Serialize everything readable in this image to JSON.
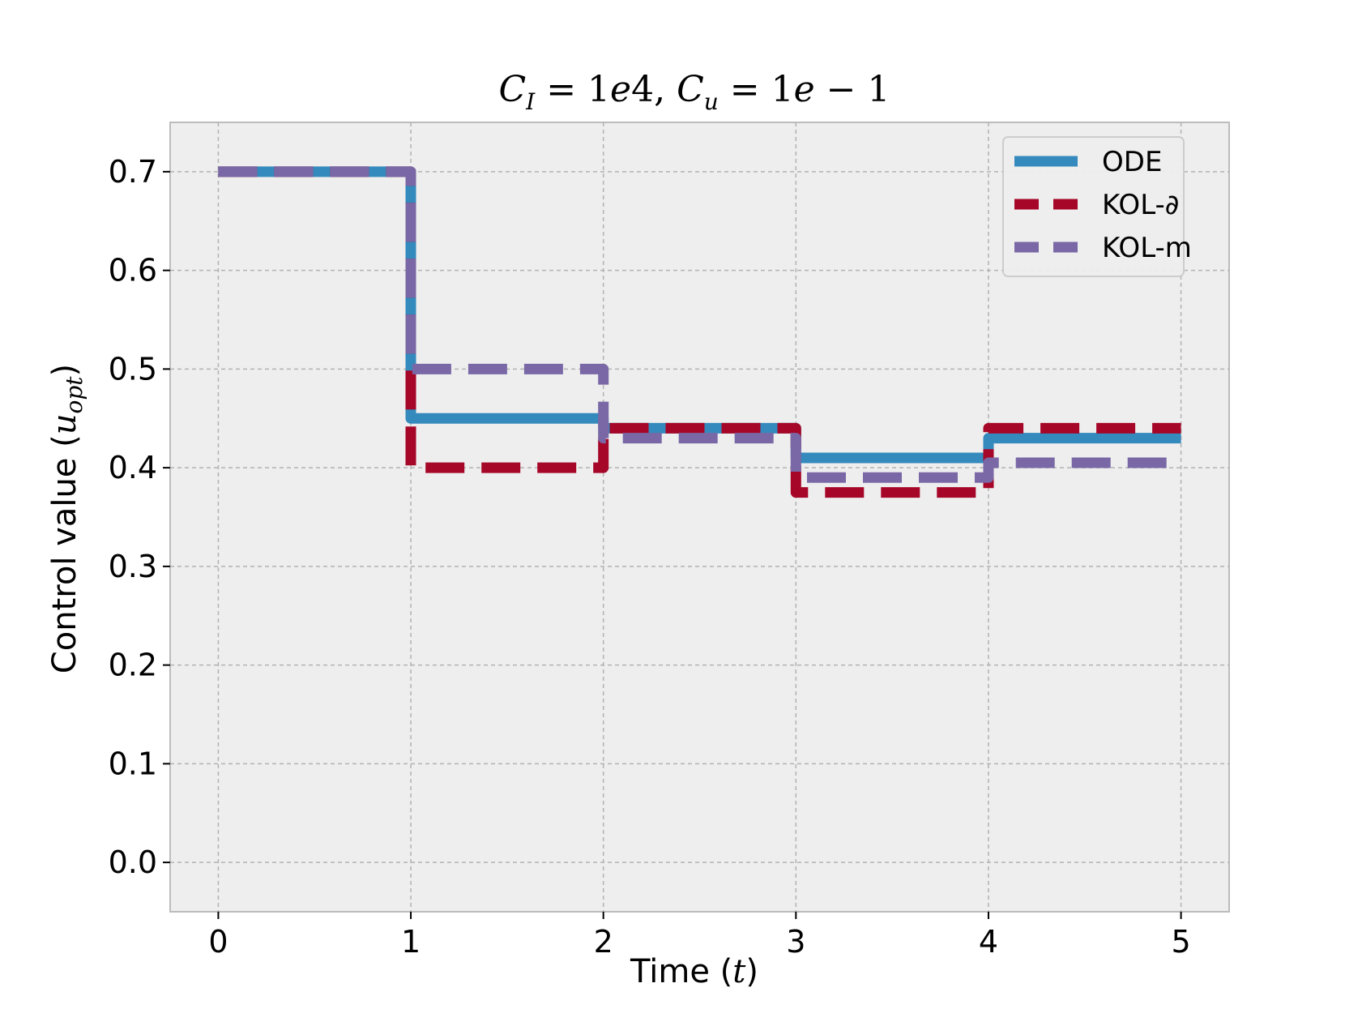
{
  "chart_data": {
    "type": "line",
    "title": "C_I = 1e4,  C_u = 1e − 1",
    "xlabel": "Time (t)",
    "ylabel": "Control value (u_opt)",
    "xlim": [
      -0.25,
      5.25
    ],
    "ylim": [
      -0.05,
      0.75
    ],
    "xticks": [
      0,
      1,
      2,
      3,
      4,
      5
    ],
    "yticks": [
      0.0,
      0.1,
      0.2,
      0.3,
      0.4,
      0.5,
      0.6,
      0.7
    ],
    "xtick_labels": [
      "0",
      "1",
      "2",
      "3",
      "4",
      "5"
    ],
    "ytick_labels": [
      "0.0",
      "0.1",
      "0.2",
      "0.3",
      "0.4",
      "0.5",
      "0.6",
      "0.7"
    ],
    "grid": true,
    "legend_position": "top-right",
    "series": [
      {
        "name": "ODE",
        "color": "#348abd",
        "style": "solid",
        "x": [
          0,
          1,
          1,
          2,
          2,
          3,
          3,
          4,
          4,
          5
        ],
        "y": [
          0.7,
          0.7,
          0.45,
          0.45,
          0.44,
          0.44,
          0.41,
          0.41,
          0.43,
          0.43
        ]
      },
      {
        "name": "KOL-∂",
        "color": "#a60628",
        "style": "dashed",
        "x": [
          0,
          1,
          1,
          2,
          2,
          3,
          3,
          4,
          4,
          5
        ],
        "y": [
          0.7,
          0.7,
          0.4,
          0.4,
          0.44,
          0.44,
          0.375,
          0.375,
          0.44,
          0.44
        ]
      },
      {
        "name": "KOL-m",
        "color": "#7a68a6",
        "style": "dashed",
        "x": [
          0,
          1,
          1,
          2,
          2,
          3,
          3,
          4,
          4,
          5
        ],
        "y": [
          0.7,
          0.7,
          0.5,
          0.5,
          0.43,
          0.43,
          0.39,
          0.39,
          0.405,
          0.405
        ]
      }
    ]
  }
}
